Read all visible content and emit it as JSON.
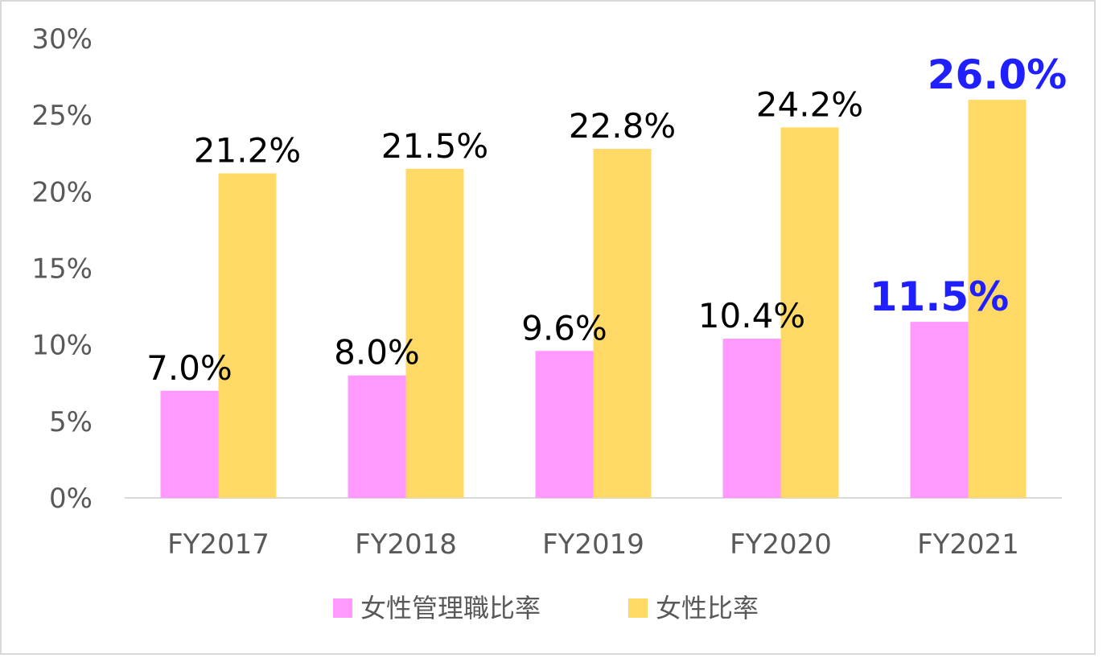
{
  "chart_data": {
    "type": "bar",
    "categories": [
      "FY2017",
      "FY2018",
      "FY2019",
      "FY2020",
      "FY2021"
    ],
    "series": [
      {
        "name": "女性管理職比率",
        "color": "#ff99ff",
        "values": [
          7.0,
          8.0,
          9.6,
          10.4,
          11.5
        ],
        "labels": [
          "7.0%",
          "8.0%",
          "9.6%",
          "10.4%",
          "11.5%"
        ]
      },
      {
        "name": "女性比率",
        "color": "#ffd966",
        "values": [
          21.2,
          21.5,
          22.8,
          24.2,
          26.0
        ],
        "labels": [
          "21.2%",
          "21.5%",
          "22.8%",
          "24.2%",
          "26.0%"
        ]
      }
    ],
    "highlight_category": "FY2021",
    "highlight_color": "#1f1fff",
    "ylim": [
      0,
      30
    ],
    "yticks": [
      "0%",
      "5%",
      "10%",
      "15%",
      "20%",
      "25%",
      "30%"
    ],
    "ytick_values": [
      0,
      5,
      10,
      15,
      20,
      25,
      30
    ],
    "grid": false,
    "legend_position": "bottom"
  }
}
